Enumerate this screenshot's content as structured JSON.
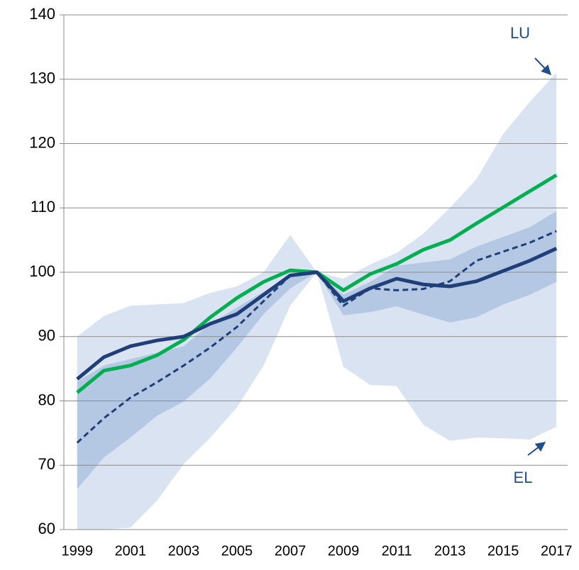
{
  "chart_data": {
    "type": "line",
    "x": [
      1999,
      2000,
      2001,
      2002,
      2003,
      2004,
      2005,
      2006,
      2007,
      2008,
      2009,
      2010,
      2011,
      2012,
      2013,
      2014,
      2015,
      2016,
      2017
    ],
    "xlim": [
      1998.5,
      2017.5
    ],
    "xticks": [
      1999,
      2001,
      2003,
      2005,
      2007,
      2009,
      2011,
      2013,
      2015,
      2017
    ],
    "ylim": [
      60,
      140
    ],
    "yticks": [
      60,
      70,
      80,
      90,
      100,
      110,
      120,
      130,
      140
    ],
    "grid": true,
    "bands": [
      {
        "color": "#dae3f1",
        "upper": [
          90,
          93.2,
          94.8,
          95,
          95.2,
          96.8,
          97.8,
          100,
          105.8,
          100,
          99,
          101.2,
          103,
          106,
          110,
          114.5,
          121.5,
          126.5,
          131
        ],
        "lower": [
          60,
          60,
          60.3,
          64.5,
          70.2,
          74.3,
          79,
          85.5,
          94.8,
          100,
          85.3,
          82.5,
          82.3,
          76.3,
          73.8,
          74.3,
          74.2,
          74,
          76
        ]
      },
      {
        "color": "#b4c7e3",
        "upper": [
          83,
          85.5,
          86.5,
          87.5,
          88.5,
          92,
          94.5,
          97,
          99.5,
          100,
          96.5,
          98.5,
          101,
          101.5,
          102,
          104,
          105.5,
          107,
          109.5
        ],
        "lower": [
          66.3,
          71.2,
          74.3,
          77.7,
          79.9,
          83.5,
          88.3,
          93.5,
          97.5,
          100,
          93.3,
          93.8,
          94.7,
          93.4,
          92.2,
          93,
          95,
          96.5,
          98.5
        ]
      }
    ],
    "series": [
      {
        "color": "#1f3f7a",
        "dash": true,
        "values": [
          73.5,
          77.3,
          80.5,
          82.9,
          85.5,
          88.3,
          91.5,
          95.5,
          99.5,
          100,
          94.8,
          97.5,
          97.2,
          97.4,
          98.6,
          101.8,
          103.2,
          104.6,
          106.4
        ]
      },
      {
        "color": "#00b050",
        "dash": false,
        "values": [
          81.3,
          84.7,
          85.5,
          87.1,
          89.5,
          93,
          96,
          98.5,
          100.3,
          100,
          97.2,
          99.7,
          101.3,
          103.5,
          105,
          107.6,
          110.1,
          112.6,
          115.1
        ]
      },
      {
        "color": "#1f3f7a",
        "dash": false,
        "values": [
          83.4,
          86.8,
          88.5,
          89.4,
          90,
          92,
          93.5,
          96.5,
          99.5,
          100,
          95.5,
          97.5,
          99,
          98.1,
          97.8,
          98.6,
          100.2,
          101.8,
          103.7
        ]
      }
    ],
    "annotations": [
      "LU",
      "EL"
    ]
  }
}
